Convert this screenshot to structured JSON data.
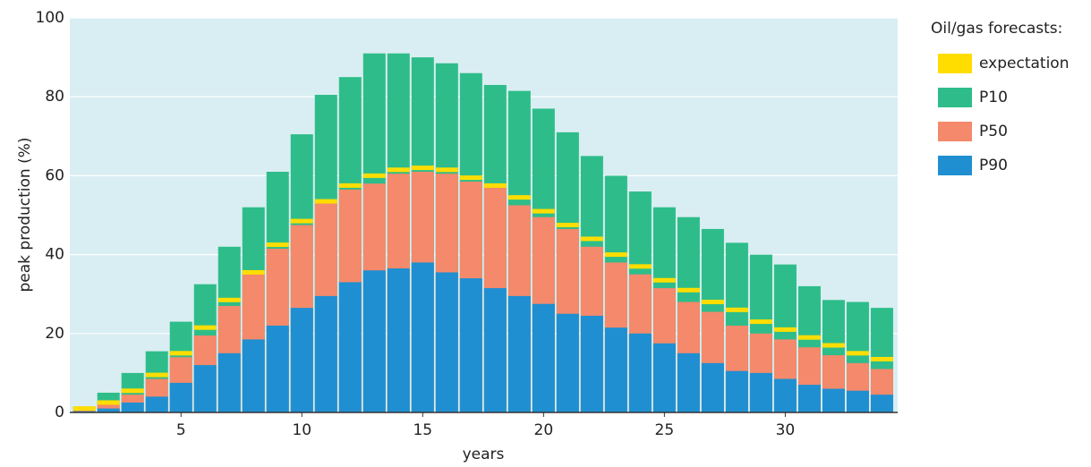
{
  "chart_data": {
    "type": "overlaid_bar",
    "xlabel": "years",
    "ylabel": "peak production (%)",
    "legend_title": "Oil/gas forecasts:",
    "x": [
      1,
      2,
      3,
      4,
      5,
      6,
      7,
      8,
      9,
      10,
      11,
      12,
      13,
      14,
      15,
      16,
      17,
      18,
      19,
      20,
      21,
      22,
      23,
      24,
      25,
      26,
      27,
      28,
      29,
      30,
      31,
      32,
      33,
      34
    ],
    "series": [
      {
        "name": "expectation",
        "color": "#ffdd00",
        "values": [
          1,
          2.5,
          5.5,
          9.5,
          15,
          21.5,
          28.5,
          35.5,
          42.5,
          48.5,
          53.5,
          57.5,
          60,
          61.5,
          62,
          61.5,
          59.5,
          57.5,
          54.5,
          51,
          47.5,
          44,
          40,
          37,
          33.5,
          31,
          28,
          26,
          23,
          21,
          19,
          17,
          15,
          13.5
        ]
      },
      {
        "name": "P10",
        "color": "#2ebd8a",
        "values": [
          1.5,
          5,
          10,
          15.5,
          23,
          32.5,
          42,
          52,
          61,
          70.5,
          80.5,
          85,
          91,
          91,
          90,
          88.5,
          86,
          83,
          81.5,
          77,
          71,
          65,
          60,
          56,
          52,
          49.5,
          46.5,
          43,
          40,
          37.5,
          32,
          28.5,
          28,
          26.5
        ]
      },
      {
        "name": "P50",
        "color": "#f4896b",
        "values": [
          0.8,
          2,
          4.5,
          8.5,
          14,
          19.5,
          27,
          35,
          41.5,
          47.5,
          53,
          56.5,
          58,
          60.5,
          61,
          60.5,
          58.5,
          57,
          52.5,
          49.5,
          46.5,
          42,
          38,
          35,
          31.5,
          28,
          25.5,
          22,
          20,
          18.5,
          16.5,
          14.5,
          12.5,
          11
        ]
      },
      {
        "name": "P90",
        "color": "#1f8fd1",
        "values": [
          0.3,
          1,
          2.5,
          4,
          7.5,
          12,
          15,
          18.5,
          22,
          26.5,
          29.5,
          33,
          36,
          36.5,
          38,
          35.5,
          34,
          31.5,
          29.5,
          27.5,
          25,
          24.5,
          21.5,
          20,
          17.5,
          15,
          12.5,
          10.5,
          10,
          8.5,
          7,
          6,
          5.5,
          4.5
        ]
      }
    ],
    "xlim": [
      0.4,
      34.65
    ],
    "ylim": [
      0,
      100
    ],
    "xticks": [
      5,
      10,
      15,
      20,
      25,
      30
    ],
    "yticks": [
      0,
      20,
      40,
      60,
      80,
      100
    ],
    "grid": true,
    "background": "#d9eef2",
    "legend": "right"
  }
}
